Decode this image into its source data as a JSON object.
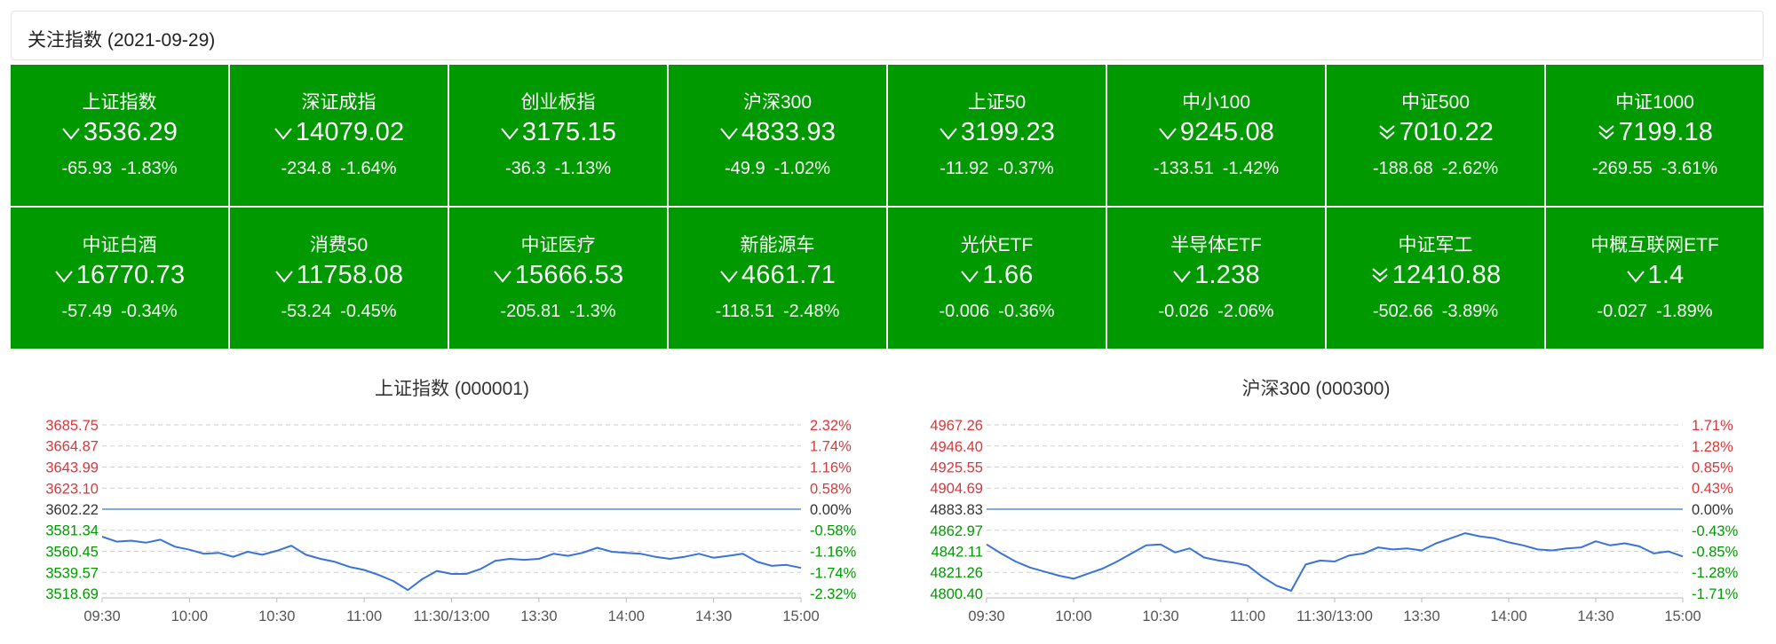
{
  "header": {
    "title": "关注指数 (2021-09-29)"
  },
  "colors": {
    "tile_bg": "#009900",
    "down": "#009900",
    "up": "#d9373b",
    "base": "#333333",
    "line": "#3a73d8"
  },
  "tiles": [
    {
      "name": "上证指数",
      "price": "3536.29",
      "change": "-65.93",
      "pct": "-1.83%",
      "arrow": "chevron-down"
    },
    {
      "name": "深证成指",
      "price": "14079.02",
      "change": "-234.8",
      "pct": "-1.64%",
      "arrow": "chevron-down"
    },
    {
      "name": "创业板指",
      "price": "3175.15",
      "change": "-36.3",
      "pct": "-1.13%",
      "arrow": "chevron-down"
    },
    {
      "name": "沪深300",
      "price": "4833.93",
      "change": "-49.9",
      "pct": "-1.02%",
      "arrow": "chevron-down"
    },
    {
      "name": "上证50",
      "price": "3199.23",
      "change": "-11.92",
      "pct": "-0.37%",
      "arrow": "chevron-down"
    },
    {
      "name": "中小100",
      "price": "9245.08",
      "change": "-133.51",
      "pct": "-1.42%",
      "arrow": "chevron-down"
    },
    {
      "name": "中证500",
      "price": "7010.22",
      "change": "-188.68",
      "pct": "-2.62%",
      "arrow": "double-chevron-down"
    },
    {
      "name": "中证1000",
      "price": "7199.18",
      "change": "-269.55",
      "pct": "-3.61%",
      "arrow": "double-chevron-down"
    },
    {
      "name": "中证白酒",
      "price": "16770.73",
      "change": "-57.49",
      "pct": "-0.34%",
      "arrow": "chevron-down"
    },
    {
      "name": "消费50",
      "price": "11758.08",
      "change": "-53.24",
      "pct": "-0.45%",
      "arrow": "chevron-down"
    },
    {
      "name": "中证医疗",
      "price": "15666.53",
      "change": "-205.81",
      "pct": "-1.3%",
      "arrow": "chevron-down"
    },
    {
      "name": "新能源车",
      "price": "4661.71",
      "change": "-118.51",
      "pct": "-2.48%",
      "arrow": "chevron-down"
    },
    {
      "name": "光伏ETF",
      "price": "1.66",
      "change": "-0.006",
      "pct": "-0.36%",
      "arrow": "chevron-down"
    },
    {
      "name": "半导体ETF",
      "price": "1.238",
      "change": "-0.026",
      "pct": "-2.06%",
      "arrow": "chevron-down"
    },
    {
      "name": "中证军工",
      "price": "12410.88",
      "change": "-502.66",
      "pct": "-3.89%",
      "arrow": "double-chevron-down"
    },
    {
      "name": "中概互联网ETF",
      "price": "1.4",
      "change": "-0.027",
      "pct": "-1.89%",
      "arrow": "chevron-down"
    }
  ],
  "chart_data": [
    {
      "type": "line",
      "title": "上证指数 (000001)",
      "base": 3602.22,
      "left_ticks": [
        "3685.75",
        "3664.87",
        "3643.99",
        "3623.10",
        "3602.22",
        "3581.34",
        "3560.45",
        "3539.57",
        "3518.69"
      ],
      "right_ticks": [
        "2.32%",
        "1.74%",
        "1.16%",
        "0.58%",
        "0.00%",
        "-0.58%",
        "-1.16%",
        "-1.74%",
        "-2.32%"
      ],
      "ylim": [
        3518.69,
        3685.75
      ],
      "x_labels": [
        "09:30",
        "10:00",
        "10:30",
        "11:00",
        "11:30/13:00",
        "13:30",
        "14:00",
        "14:30",
        "15:00"
      ],
      "x": [
        "09:30",
        "09:35",
        "09:40",
        "09:45",
        "09:50",
        "09:55",
        "10:00",
        "10:05",
        "10:10",
        "10:15",
        "10:20",
        "10:25",
        "10:30",
        "10:35",
        "10:40",
        "10:45",
        "10:50",
        "10:55",
        "11:00",
        "11:05",
        "11:10",
        "11:15",
        "11:20",
        "11:25",
        "11:30/13:00",
        "13:05",
        "13:10",
        "13:15",
        "13:20",
        "13:25",
        "13:30",
        "13:35",
        "13:40",
        "13:45",
        "13:50",
        "13:55",
        "14:00",
        "14:05",
        "14:10",
        "14:15",
        "14:20",
        "14:25",
        "14:30",
        "14:35",
        "14:40",
        "14:45",
        "14:50",
        "14:55",
        "15:00"
      ],
      "values": [
        3575,
        3570,
        3571,
        3569,
        3572,
        3565,
        3562,
        3558,
        3559,
        3555,
        3560,
        3557,
        3561,
        3566,
        3557,
        3553,
        3550,
        3545,
        3542,
        3537,
        3531,
        3522,
        3533,
        3541,
        3538,
        3538,
        3543,
        3551,
        3553,
        3552,
        3553,
        3558,
        3556,
        3559,
        3564,
        3560,
        3559,
        3558,
        3555,
        3553,
        3555,
        3558,
        3554,
        3556,
        3558,
        3550,
        3546,
        3547,
        3544
      ]
    },
    {
      "type": "line",
      "title": "沪深300 (000300)",
      "base": 4883.83,
      "left_ticks": [
        "4967.26",
        "4946.40",
        "4925.55",
        "4904.69",
        "4883.83",
        "4862.97",
        "4842.11",
        "4821.26",
        "4800.40"
      ],
      "right_ticks": [
        "1.71%",
        "1.28%",
        "0.85%",
        "0.43%",
        "0.00%",
        "-0.43%",
        "-0.85%",
        "-1.28%",
        "-1.71%"
      ],
      "ylim": [
        4800.4,
        4967.26
      ],
      "x_labels": [
        "09:30",
        "10:00",
        "10:30",
        "11:00",
        "11:30/13:00",
        "13:30",
        "14:00",
        "14:30",
        "15:00"
      ],
      "x": [
        "09:30",
        "09:35",
        "09:40",
        "09:45",
        "09:50",
        "09:55",
        "10:00",
        "10:05",
        "10:10",
        "10:15",
        "10:20",
        "10:25",
        "10:30",
        "10:35",
        "10:40",
        "10:45",
        "10:50",
        "10:55",
        "11:00",
        "11:05",
        "11:10",
        "11:15",
        "11:20",
        "11:25",
        "11:30/13:00",
        "13:05",
        "13:10",
        "13:15",
        "13:20",
        "13:25",
        "13:30",
        "13:35",
        "13:40",
        "13:45",
        "13:50",
        "13:55",
        "14:00",
        "14:05",
        "14:10",
        "14:15",
        "14:20",
        "14:25",
        "14:30",
        "14:35",
        "14:40",
        "14:45",
        "14:50",
        "14:55",
        "15:00"
      ],
      "values": [
        4849,
        4840,
        4832,
        4826,
        4822,
        4818,
        4815,
        4820,
        4825,
        4832,
        4840,
        4848,
        4849,
        4841,
        4845,
        4836,
        4833,
        4831,
        4828,
        4817,
        4808,
        4803,
        4829,
        4833,
        4832,
        4838,
        4840,
        4846,
        4844,
        4845,
        4843,
        4850,
        4855,
        4860,
        4857,
        4855,
        4851,
        4848,
        4844,
        4843,
        4845,
        4846,
        4852,
        4848,
        4850,
        4847,
        4840,
        4842,
        4837
      ]
    }
  ]
}
